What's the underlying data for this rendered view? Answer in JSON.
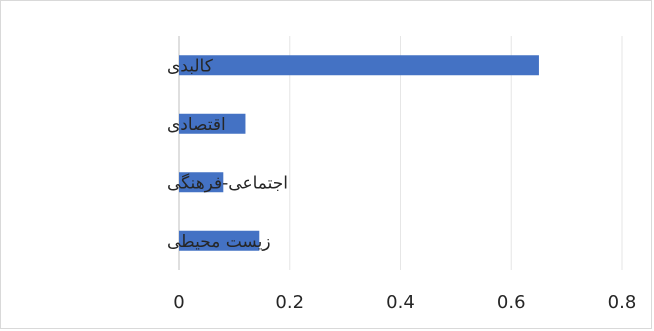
{
  "chart_data": {
    "type": "bar",
    "orientation": "horizontal",
    "title": "",
    "xlabel": "",
    "ylabel": "",
    "categories": [
      "کالبدی",
      "اقتصادی",
      "اجتماعی-فرهنگی",
      "زیست محیطی"
    ],
    "values": [
      0.65,
      0.12,
      0.08,
      0.145
    ],
    "xlim": [
      0,
      0.8
    ],
    "xticks": [
      0,
      0.2,
      0.4,
      0.6,
      0.8
    ],
    "xtick_labels": [
      "0",
      "0.2",
      "0.4",
      "0.6",
      "0.8"
    ],
    "grid": "vertical",
    "legend": "none",
    "colors": {
      "bar": "#4472C4",
      "grid": "#e6e6e6",
      "axis": "#bfbfbf",
      "text": "#262626"
    }
  }
}
